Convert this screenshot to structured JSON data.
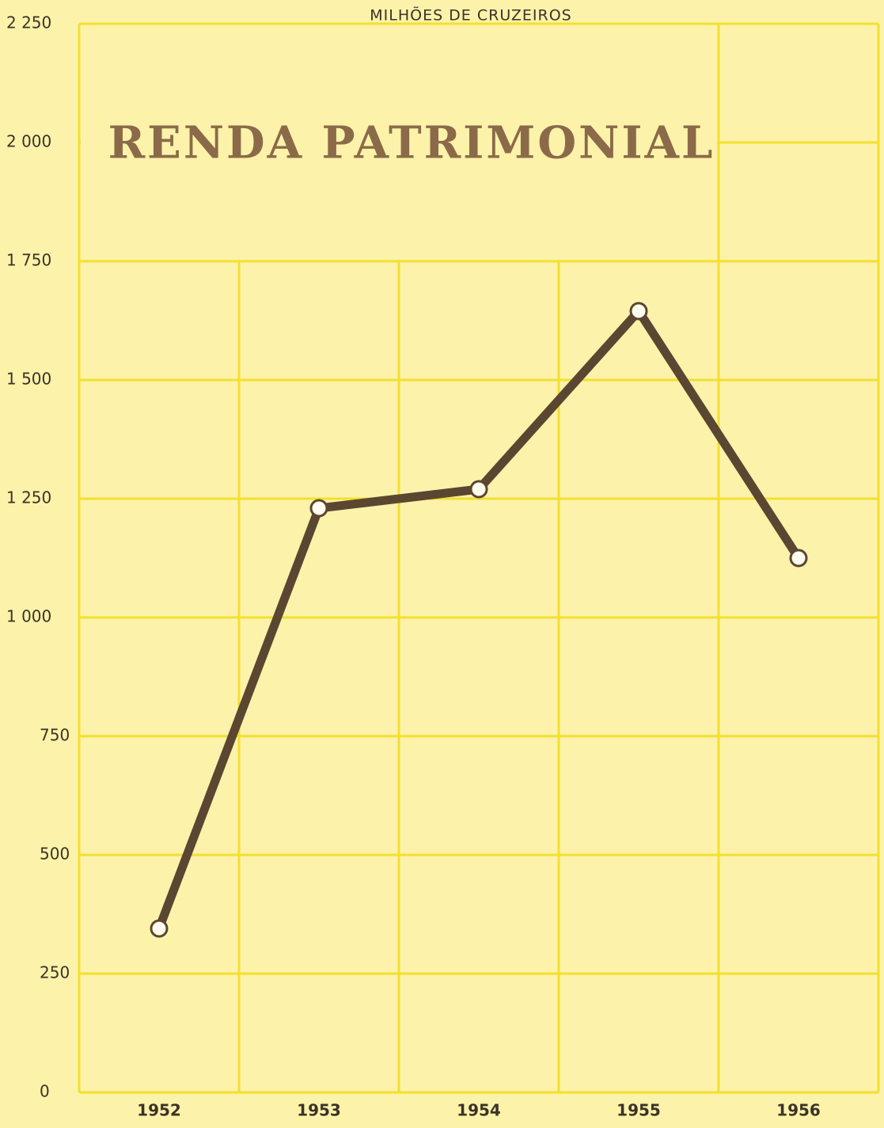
{
  "chart_data": {
    "type": "line",
    "title": "RENDA PATRIMONIAL",
    "y_axis_label": "MILHÕES DE CRUZEIROS",
    "categories": [
      "1952",
      "1953",
      "1954",
      "1955",
      "1956"
    ],
    "series": [
      {
        "name": "Renda patrimonial",
        "color": "#5a4631",
        "values": [
          345,
          1230,
          1270,
          1645,
          1125
        ]
      }
    ],
    "ylim": [
      0,
      2250
    ],
    "yticks": [
      0,
      250,
      500,
      750,
      {
        "value": 1000,
        "label": "1 000"
      },
      {
        "value": 1250,
        "label": "1 250"
      },
      {
        "value": 1500,
        "label": "1 500"
      },
      {
        "value": 1750,
        "label": "1 750"
      },
      {
        "value": 2000,
        "label": "2 000"
      },
      {
        "value": 2250,
        "label": "2 250"
      }
    ],
    "grid": true
  }
}
